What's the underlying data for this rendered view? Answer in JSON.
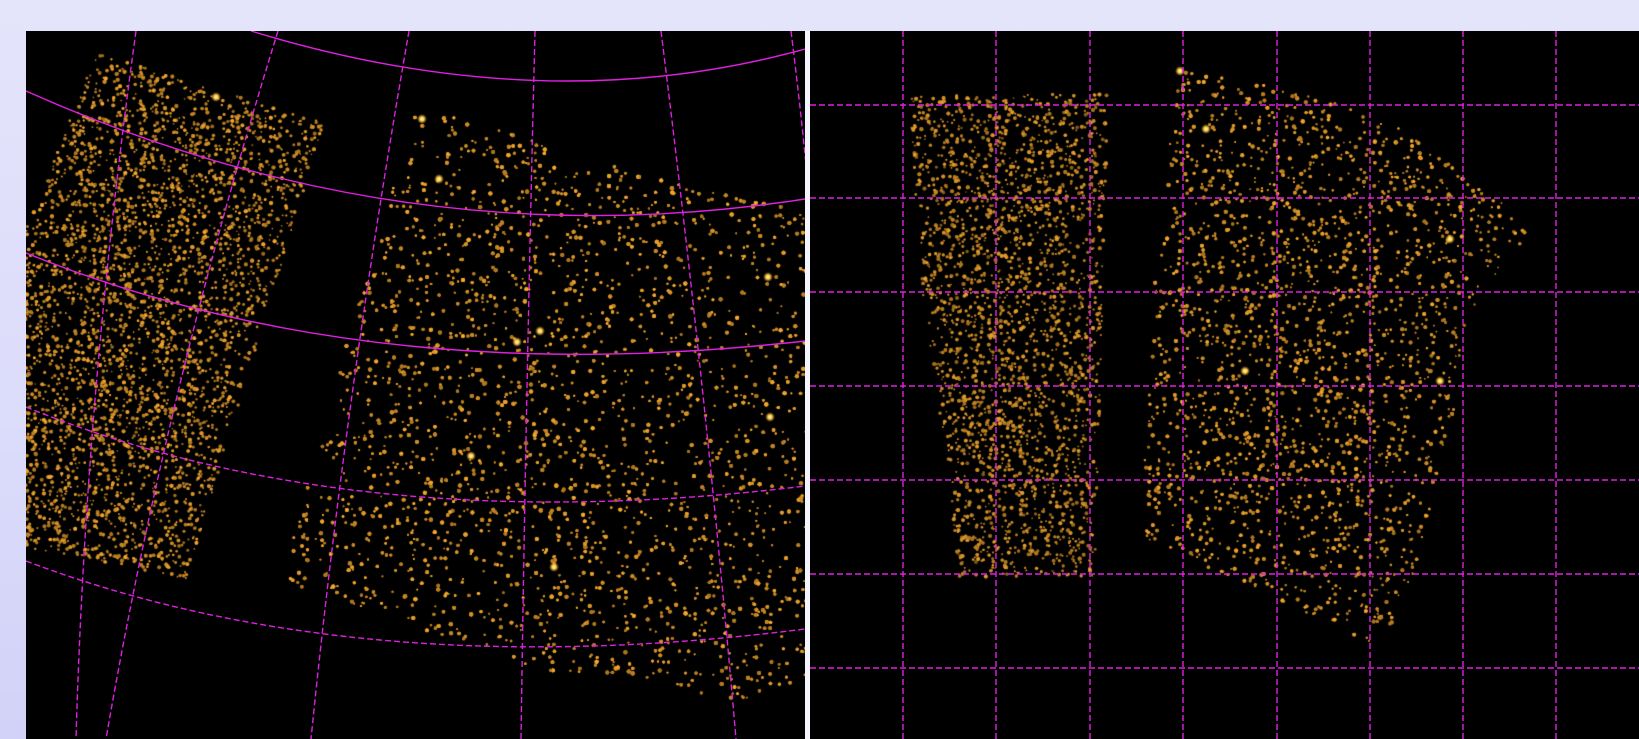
{
  "colors": {
    "background": "#000000",
    "event_color": "#e09a2a",
    "event_bright": "#ffd24a",
    "grid_color": "#e020e0",
    "frame_gradient_top": "#e4e4fb",
    "frame_gradient_bottom": "#d2d2f8"
  },
  "panels": [
    {
      "name": "left-sky-projection-view",
      "grid": "curved-wcs-grid"
    },
    {
      "name": "right-linear-grid-view",
      "grid": "rectilinear-grid"
    }
  ]
}
